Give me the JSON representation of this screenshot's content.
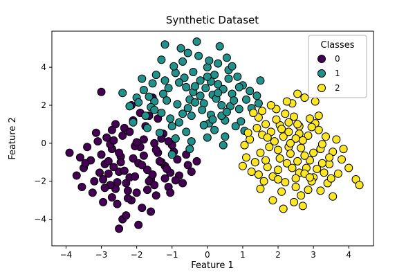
{
  "figure": {
    "background": "#ffffff"
  },
  "chart_data": {
    "type": "scatter",
    "title": "Synthetic Dataset",
    "xlabel": "Feature 1",
    "ylabel": "Feature 2",
    "xlim": [
      -4.4,
      4.7
    ],
    "ylim": [
      -5.4,
      5.9
    ],
    "xticks": [
      -4,
      -3,
      -2,
      -1,
      0,
      1,
      2,
      3,
      4
    ],
    "yticks": [
      -4,
      -2,
      0,
      2,
      4
    ],
    "grid": false,
    "marker": {
      "size": 5.5,
      "edge_color": "#000000"
    },
    "legend": {
      "title": "Classes",
      "position": "upper right"
    },
    "series": [
      {
        "name": "0",
        "color": "#440154",
        "points": [
          [
            -2.1,
            -0.8
          ],
          [
            -1.6,
            -1.9
          ],
          [
            -2.7,
            -0.3
          ],
          [
            -1.2,
            -1.2
          ],
          [
            -2.3,
            -2.1
          ],
          [
            -3.0,
            -0.6
          ],
          [
            -1.8,
            0.2
          ],
          [
            -2.5,
            -1.5
          ],
          [
            -1.4,
            -0.5
          ],
          [
            -2.0,
            -2.6
          ],
          [
            -2.9,
            -1.1
          ],
          [
            -1.1,
            -2.3
          ],
          [
            -2.4,
            0.4
          ],
          [
            -1.7,
            -1.4
          ],
          [
            -3.3,
            -0.9
          ],
          [
            -2.2,
            -1.8
          ],
          [
            -1.5,
            0.0
          ],
          [
            -2.6,
            -2.4
          ],
          [
            -1.9,
            -0.2
          ],
          [
            -2.8,
            -1.6
          ],
          [
            -1.3,
            -1.0
          ],
          [
            -2.15,
            -3.0
          ],
          [
            -3.1,
            0.1
          ],
          [
            -1.65,
            -2.0
          ],
          [
            -2.45,
            -0.7
          ],
          [
            -1.05,
            -1.55
          ],
          [
            -2.75,
            -2.2
          ],
          [
            -1.85,
            -3.4
          ],
          [
            -2.35,
            0.8
          ],
          [
            -3.5,
            -1.3
          ],
          [
            -0.8,
            -1.7
          ],
          [
            -2.05,
            -0.15
          ],
          [
            -1.45,
            -2.75
          ],
          [
            -2.65,
            -1.25
          ],
          [
            -1.25,
            0.5
          ],
          [
            -3.2,
            -2.0
          ],
          [
            -1.95,
            -1.05
          ],
          [
            -2.55,
            -3.2
          ],
          [
            -0.95,
            -0.45
          ],
          [
            -2.85,
            0.3
          ],
          [
            -1.55,
            -1.65
          ],
          [
            -2.25,
            -2.5
          ],
          [
            -3.4,
            -0.2
          ],
          [
            -1.75,
            0.9
          ],
          [
            -2.95,
            -1.9
          ],
          [
            -1.15,
            -1.35
          ],
          [
            -2.4,
            -4.0
          ],
          [
            -0.7,
            -2.1
          ],
          [
            -2.1,
            1.2
          ],
          [
            -3.6,
            -0.75
          ],
          [
            -1.35,
            -0.95
          ],
          [
            -2.7,
            -2.85
          ],
          [
            -1.9,
            1.6
          ],
          [
            -2.5,
            -0.5
          ],
          [
            -0.55,
            -1.15
          ],
          [
            -3.05,
            -1.55
          ],
          [
            -1.6,
            -3.6
          ],
          [
            -2.2,
            0.6
          ],
          [
            -1.0,
            -0.1
          ],
          [
            -2.9,
            -2.35
          ],
          [
            -1.5,
            -2.2
          ],
          [
            -2.6,
            1.0
          ],
          [
            -3.7,
            -1.7
          ],
          [
            -1.8,
            -0.65
          ],
          [
            -2.3,
            -3.8
          ],
          [
            -0.85,
            -0.85
          ],
          [
            -2.0,
            0.05
          ],
          [
            -3.25,
            -2.6
          ],
          [
            -1.4,
            1.3
          ],
          [
            -2.75,
            -0.05
          ],
          [
            -1.2,
            -1.85
          ],
          [
            -2.45,
            -1.0
          ],
          [
            -3.9,
            -0.5
          ],
          [
            -1.7,
            -2.45
          ],
          [
            -2.15,
            2.0
          ],
          [
            -0.6,
            -0.6
          ],
          [
            -2.95,
            -3.1
          ],
          [
            -1.3,
            0.25
          ],
          [
            -2.55,
            -2.05
          ],
          [
            -3.15,
            0.55
          ],
          [
            -0.45,
            -1.5
          ],
          [
            -2.35,
            -1.45
          ],
          [
            -1.55,
            2.4
          ],
          [
            -2.8,
            -0.95
          ],
          [
            -1.05,
            -2.6
          ],
          [
            -3.45,
            -1.05
          ],
          [
            -1.95,
            -4.3
          ],
          [
            -2.65,
            0.15
          ],
          [
            -0.3,
            -0.95
          ],
          [
            -2.05,
            -1.75
          ],
          [
            -1.45,
            -0.35
          ],
          [
            -3.0,
            2.7
          ],
          [
            -2.25,
            -2.9
          ],
          [
            -1.65,
            1.45
          ],
          [
            -2.5,
            -4.5
          ],
          [
            -0.9,
            -1.95
          ],
          [
            -3.55,
            -2.3
          ],
          [
            -1.85,
            -1.15
          ],
          [
            -2.7,
            0.7
          ],
          [
            -1.1,
            0.1
          ]
        ]
      },
      {
        "name": "1",
        "color": "#21918c",
        "points": [
          [
            -0.5,
            2.3
          ],
          [
            0.1,
            1.5
          ],
          [
            -1.1,
            2.9
          ],
          [
            0.4,
            2.0
          ],
          [
            -0.8,
            1.1
          ],
          [
            -0.2,
            3.3
          ],
          [
            -1.5,
            2.2
          ],
          [
            0.7,
            2.6
          ],
          [
            -0.6,
            0.6
          ],
          [
            0.0,
            4.0
          ],
          [
            -1.3,
            1.6
          ],
          [
            0.3,
            3.1
          ],
          [
            -0.9,
            3.7
          ],
          [
            0.9,
            1.8
          ],
          [
            -0.4,
            2.7
          ],
          [
            -1.8,
            2.8
          ],
          [
            0.5,
            1.2
          ],
          [
            -0.1,
            2.1
          ],
          [
            -1.0,
            0.9
          ],
          [
            0.2,
            3.6
          ],
          [
            -0.7,
            4.3
          ],
          [
            1.1,
            2.3
          ],
          [
            -1.6,
            1.9
          ],
          [
            0.0,
            0.3
          ],
          [
            -0.35,
            3.0
          ],
          [
            0.6,
            3.4
          ],
          [
            -1.2,
            3.3
          ],
          [
            -0.55,
            1.85
          ],
          [
            1.3,
            1.6
          ],
          [
            -2.0,
            2.4
          ],
          [
            0.15,
            2.55
          ],
          [
            -0.85,
            2.05
          ],
          [
            0.8,
            0.9
          ],
          [
            -1.45,
            3.6
          ],
          [
            -0.25,
            4.6
          ],
          [
            0.45,
            2.85
          ],
          [
            -1.05,
            1.3
          ],
          [
            0.05,
            1.05
          ],
          [
            -0.65,
            3.45
          ],
          [
            1.0,
            3.05
          ],
          [
            -1.75,
            1.45
          ],
          [
            0.3,
            4.2
          ],
          [
            -0.45,
            0.1
          ],
          [
            0.65,
            1.95
          ],
          [
            -1.25,
            2.6
          ],
          [
            -0.05,
            2.9
          ],
          [
            0.85,
            3.5
          ],
          [
            -1.55,
            3.15
          ],
          [
            0.2,
            0.7
          ],
          [
            -0.75,
            5.0
          ],
          [
            1.2,
            2.75
          ],
          [
            -2.2,
            1.95
          ],
          [
            -0.15,
            1.75
          ],
          [
            0.55,
            4.5
          ],
          [
            -0.95,
            4.05
          ],
          [
            0.1,
            3.25
          ],
          [
            -1.35,
            0.55
          ],
          [
            0.75,
            2.25
          ],
          [
            -0.5,
            -0.3
          ],
          [
            1.45,
            2.1
          ],
          [
            -1.85,
            3.4
          ],
          [
            0.4,
            1.45
          ],
          [
            -0.3,
            5.35
          ],
          [
            0.95,
            1.15
          ],
          [
            -1.15,
            2.25
          ],
          [
            -0.6,
            2.95
          ],
          [
            0.25,
            2.35
          ],
          [
            -2.4,
            2.65
          ],
          [
            0.6,
            3.85
          ],
          [
            -1.0,
            -0.6
          ],
          [
            1.05,
            0.65
          ],
          [
            -0.4,
            3.75
          ],
          [
            -1.65,
            2.45
          ],
          [
            0.5,
            0.35
          ],
          [
            -0.2,
            2.5
          ],
          [
            0.35,
            5.1
          ],
          [
            -1.3,
            4.4
          ],
          [
            -0.7,
            1.55
          ],
          [
            1.5,
            3.3
          ],
          [
            -2.1,
            1.1
          ],
          [
            0.0,
            3.5
          ],
          [
            -0.9,
            0.25
          ],
          [
            0.7,
            4.05
          ],
          [
            -1.5,
            1.75
          ],
          [
            -0.1,
            0.95
          ],
          [
            1.25,
            1.85
          ],
          [
            -0.55,
            4.75
          ],
          [
            0.45,
            -0.1
          ],
          [
            -1.95,
            2.15
          ],
          [
            0.15,
            1.25
          ],
          [
            -0.8,
            3.2
          ],
          [
            1.4,
            2.5
          ],
          [
            -1.2,
            5.2
          ],
          [
            0.3,
            2.65
          ],
          [
            -0.45,
            1.45
          ],
          [
            0.9,
            2.95
          ],
          [
            -1.7,
            0.8
          ],
          [
            0.05,
            4.35
          ],
          [
            -0.35,
            2.15
          ],
          [
            0.55,
            1.65
          ],
          [
            1.35,
            -1.0
          ]
        ]
      },
      {
        "name": "2",
        "color": "#fde725",
        "points": [
          [
            2.3,
            -0.2
          ],
          [
            1.8,
            0.6
          ],
          [
            2.9,
            -0.9
          ],
          [
            1.5,
            -0.5
          ],
          [
            2.6,
            0.9
          ],
          [
            3.2,
            -0.3
          ],
          [
            2.0,
            -1.4
          ],
          [
            2.45,
            1.4
          ],
          [
            1.2,
            0.2
          ],
          [
            3.0,
            -1.8
          ],
          [
            2.15,
            0.35
          ],
          [
            2.75,
            -0.65
          ],
          [
            1.65,
            1.0
          ],
          [
            3.45,
            -1.1
          ],
          [
            2.5,
            -2.3
          ],
          [
            1.95,
            1.8
          ],
          [
            2.85,
            0.4
          ],
          [
            1.35,
            -1.0
          ],
          [
            3.15,
            0.7
          ],
          [
            2.25,
            -1.05
          ],
          [
            1.75,
            -0.2
          ],
          [
            2.6,
            -1.55
          ],
          [
            3.55,
            -0.45
          ],
          [
            2.05,
            0.95
          ],
          [
            2.4,
            2.1
          ],
          [
            1.1,
            -0.75
          ],
          [
            2.95,
            -2.0
          ],
          [
            1.55,
            0.45
          ],
          [
            3.3,
            -1.55
          ],
          [
            2.7,
            0.15
          ],
          [
            1.85,
            -1.75
          ],
          [
            2.3,
            0.6
          ],
          [
            3.8,
            -0.85
          ],
          [
            1.45,
            1.35
          ],
          [
            2.55,
            -0.95
          ],
          [
            2.1,
            -2.55
          ],
          [
            3.05,
            1.05
          ],
          [
            1.7,
            -1.25
          ],
          [
            2.8,
            -1.3
          ],
          [
            3.65,
            0.2
          ],
          [
            2.2,
            1.55
          ],
          [
            1.25,
            -1.5
          ],
          [
            2.65,
            -2.75
          ],
          [
            3.25,
            -0.05
          ],
          [
            1.9,
            0.1
          ],
          [
            2.35,
            -0.55
          ],
          [
            4.0,
            -1.3
          ],
          [
            1.6,
            -2.0
          ],
          [
            2.9,
            1.3
          ],
          [
            2.5,
            -1.85
          ],
          [
            3.4,
            -2.1
          ],
          [
            1.4,
            0.8
          ],
          [
            2.05,
            -0.8
          ],
          [
            2.75,
            2.4
          ],
          [
            3.5,
            -1.85
          ],
          [
            1.05,
            -0.1
          ],
          [
            2.45,
            -3.1
          ],
          [
            1.8,
            2.0
          ],
          [
            3.1,
            -1.35
          ],
          [
            2.6,
            0.5
          ],
          [
            1.5,
            -2.4
          ],
          [
            2.25,
            2.2
          ],
          [
            3.7,
            -1.6
          ],
          [
            2.0,
            -0.35
          ],
          [
            2.85,
            -2.45
          ],
          [
            1.3,
            1.6
          ],
          [
            3.35,
            0.35
          ],
          [
            2.55,
            1.0
          ],
          [
            1.65,
            -0.9
          ],
          [
            3.0,
            -0.5
          ],
          [
            2.4,
            -1.3
          ],
          [
            4.2,
            -1.9
          ],
          [
            1.95,
            1.25
          ],
          [
            2.7,
            -3.3
          ],
          [
            3.2,
            -2.5
          ],
          [
            1.15,
            0.55
          ],
          [
            2.1,
            0.75
          ],
          [
            3.55,
            -2.8
          ],
          [
            2.5,
            0.25
          ],
          [
            1.45,
            -1.65
          ],
          [
            2.95,
            0.85
          ],
          [
            2.2,
            -2.05
          ],
          [
            3.85,
            -0.3
          ],
          [
            1.55,
            1.7
          ],
          [
            2.65,
            -0.25
          ],
          [
            3.05,
            2.2
          ],
          [
            1.85,
            -3.0
          ],
          [
            2.3,
            1.1
          ],
          [
            3.45,
            -0.75
          ],
          [
            2.75,
            -1.6
          ],
          [
            1.0,
            -1.2
          ],
          [
            2.15,
            -3.45
          ],
          [
            2.55,
            2.6
          ],
          [
            3.25,
            -1.05
          ],
          [
            1.7,
            0.3
          ],
          [
            2.9,
            -1.8
          ],
          [
            4.3,
            -2.2
          ],
          [
            2.0,
            -1.9
          ],
          [
            3.15,
            1.45
          ],
          [
            2.35,
            0.0
          ]
        ]
      }
    ]
  }
}
